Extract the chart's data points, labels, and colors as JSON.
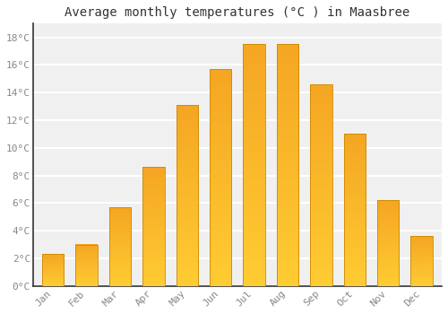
{
  "title": "Average monthly temperatures (°C ) in Maasbree",
  "months": [
    "Jan",
    "Feb",
    "Mar",
    "Apr",
    "May",
    "Jun",
    "Jul",
    "Aug",
    "Sep",
    "Oct",
    "Nov",
    "Dec"
  ],
  "temperatures": [
    2.3,
    3.0,
    5.7,
    8.6,
    13.1,
    15.7,
    17.5,
    17.5,
    14.6,
    11.0,
    6.2,
    3.6
  ],
  "bar_color_bottom": "#FFCC33",
  "bar_color_top": "#F5A623",
  "bar_edge_color": "#CC8800",
  "background_color": "#FFFFFF",
  "plot_bg_color": "#F0F0F0",
  "grid_color": "#FFFFFF",
  "ylim": [
    0,
    19
  ],
  "yticks": [
    0,
    2,
    4,
    6,
    8,
    10,
    12,
    14,
    16,
    18
  ],
  "ytick_labels": [
    "0°C",
    "2°C",
    "4°C",
    "6°C",
    "8°C",
    "10°C",
    "12°C",
    "14°C",
    "16°C",
    "18°C"
  ],
  "title_fontsize": 10,
  "tick_fontsize": 8,
  "tick_color": "#888888",
  "bar_width": 0.65,
  "left_spine_color": "#333333"
}
